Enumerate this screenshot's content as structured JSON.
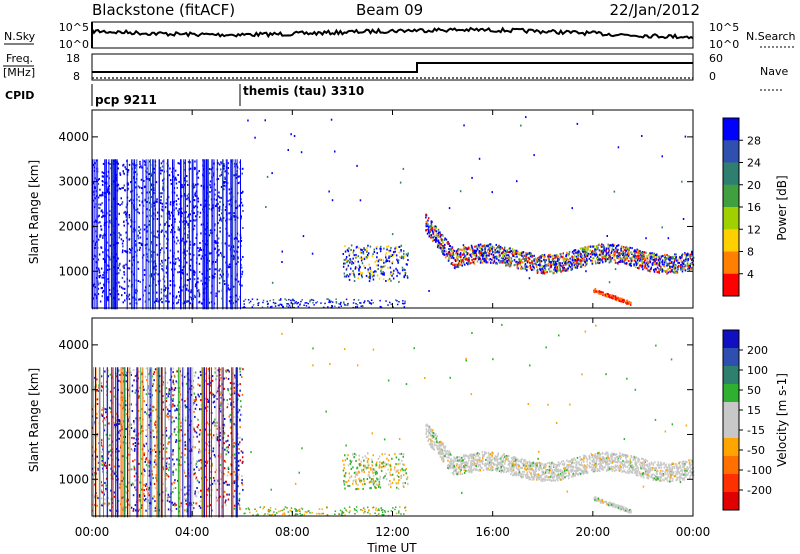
{
  "header": {
    "station": "Blackstone (fitACF)",
    "beam": "Beam 09",
    "date": "22/Jan/2012"
  },
  "top_panels": {
    "nsky": {
      "label": "N.Sky",
      "ticks": [
        "10^5",
        "10^0"
      ]
    },
    "nsearch": {
      "label": "N.Search",
      "ticks": [
        "10^5",
        "10^0"
      ]
    },
    "freq": {
      "label_line1": "Freq.",
      "label_line2": "[MHz]",
      "ticks": [
        "18",
        "8"
      ]
    },
    "nave": {
      "label": "Nave",
      "ticks": [
        "60",
        "0"
      ]
    },
    "cpid": {
      "label": "CPID",
      "segments": [
        {
          "label": "pcp 9211",
          "start_hour": 0
        },
        {
          "label": "themis (tau) 3310",
          "start_hour": 6.0
        }
      ]
    }
  },
  "colors": {
    "power_scale": [
      "#0000ff",
      "#3050b0",
      "#2f7f70",
      "#40a040",
      "#a0d000",
      "#ffd000",
      "#ff8000",
      "#ff0000"
    ],
    "velocity_scale": [
      "#1010c0",
      "#2f4fb0",
      "#2f7f6f",
      "#30b030",
      "#c8c8c8",
      "#c8c8c8",
      "#ffa500",
      "#ff7000",
      "#ff3000",
      "#e00000"
    ]
  },
  "chart_data": [
    {
      "type": "heatmap",
      "title": "Power",
      "ylabel": "Slant Range [km]",
      "xlabel": "Time UT",
      "x_ticks": [
        "00:00",
        "04:00",
        "08:00",
        "12:00",
        "16:00",
        "20:00",
        "00:00"
      ],
      "y_ticks": [
        1000,
        2000,
        3000,
        4000
      ],
      "xlim_hours": [
        0,
        24
      ],
      "ylim_km": [
        180,
        4600
      ],
      "colorbar": {
        "label": "Power [dB]",
        "ticks": [
          "28",
          "24",
          "20",
          "16",
          "12",
          "8",
          "4"
        ],
        "range": [
          0,
          30
        ]
      }
    },
    {
      "type": "heatmap",
      "title": "Velocity",
      "ylabel": "Slant Range [km]",
      "xlabel": "Time UT",
      "x_ticks": [
        "00:00",
        "04:00",
        "08:00",
        "12:00",
        "16:00",
        "20:00",
        "00:00"
      ],
      "y_ticks": [
        1000,
        2000,
        3000,
        4000
      ],
      "xlim_hours": [
        0,
        24
      ],
      "ylim_km": [
        180,
        4600
      ],
      "colorbar": {
        "label": "Velocity [m s-1]",
        "ticks": [
          "200",
          "100",
          "50",
          "15",
          "-15",
          "-50",
          "-100",
          "-200"
        ],
        "range": [
          -250,
          250
        ]
      }
    }
  ]
}
